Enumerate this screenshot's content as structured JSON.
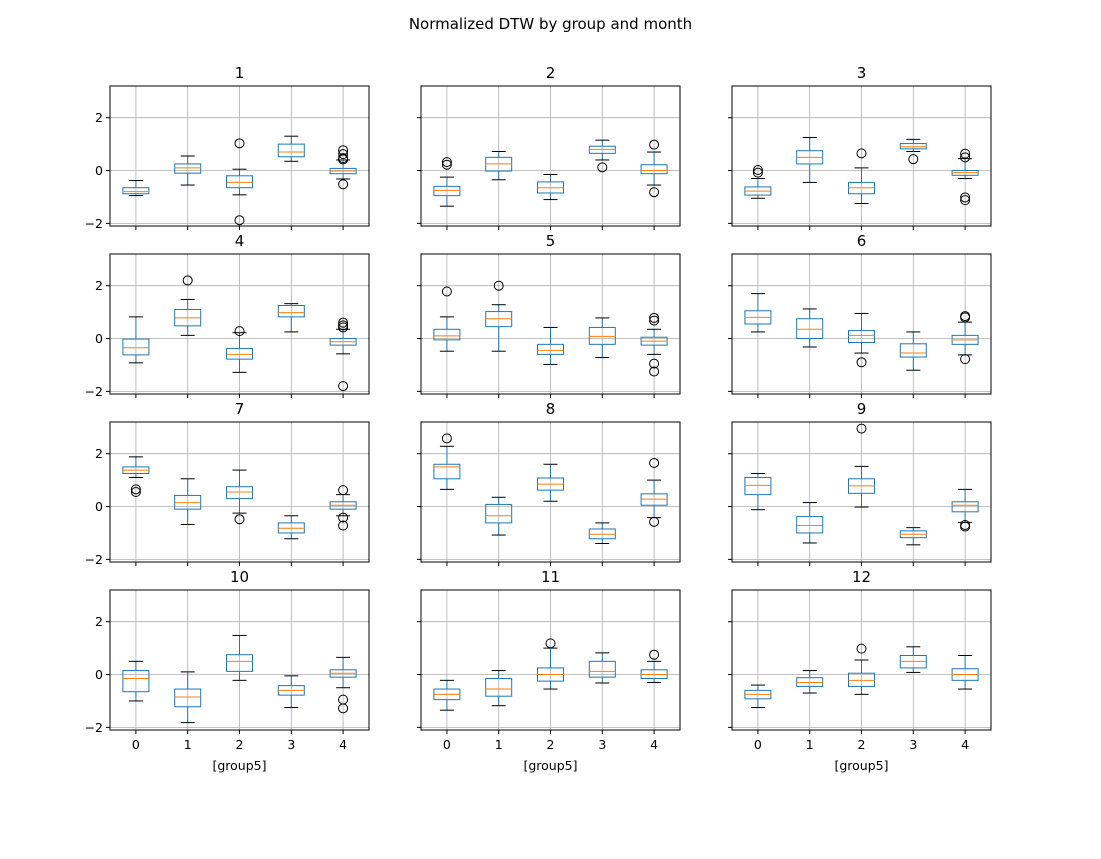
{
  "chart_data": {
    "type": "box",
    "title": "Normalized DTW by group and month",
    "xlabel": "[group5]",
    "categories": [
      "0",
      "1",
      "2",
      "3",
      "4"
    ],
    "ylim": [
      -2.1,
      3.2
    ],
    "yticks": [
      -2,
      0,
      2
    ],
    "grid": true,
    "box_color": "#1f77b4",
    "median_color": "#ff7f0e",
    "panels": [
      {
        "title": "1",
        "boxes": [
          {
            "whislo": -0.95,
            "q1": -0.88,
            "med": -0.8,
            "q3": -0.65,
            "whishi": -0.38,
            "fliers": []
          },
          {
            "whislo": -0.55,
            "q1": -0.1,
            "med": 0.1,
            "q3": 0.25,
            "whishi": 0.55,
            "fliers": []
          },
          {
            "whislo": -0.92,
            "q1": -0.65,
            "med": -0.45,
            "q3": -0.2,
            "whishi": 0.05,
            "fliers": [
              1.03,
              -1.88
            ]
          },
          {
            "whislo": 0.35,
            "q1": 0.52,
            "med": 0.7,
            "q3": 1.0,
            "whishi": 1.3,
            "fliers": []
          },
          {
            "whislo": -0.32,
            "q1": -0.12,
            "med": -0.02,
            "q3": 0.08,
            "whishi": 0.4,
            "fliers": [
              0.77,
              0.62,
              0.47,
              0.42,
              -0.52
            ]
          }
        ]
      },
      {
        "title": "2",
        "boxes": [
          {
            "whislo": -1.35,
            "q1": -0.95,
            "med": -0.75,
            "q3": -0.6,
            "whishi": -0.25,
            "fliers": [
              0.32,
              0.22
            ]
          },
          {
            "whislo": -0.35,
            "q1": -0.02,
            "med": 0.25,
            "q3": 0.5,
            "whishi": 0.72,
            "fliers": []
          },
          {
            "whislo": -1.1,
            "q1": -0.85,
            "med": -0.65,
            "q3": -0.43,
            "whishi": -0.15,
            "fliers": []
          },
          {
            "whislo": 0.4,
            "q1": 0.65,
            "med": 0.8,
            "q3": 0.92,
            "whishi": 1.15,
            "fliers": [
              0.12
            ]
          },
          {
            "whislo": -0.55,
            "q1": -0.12,
            "med": 0.0,
            "q3": 0.22,
            "whishi": 0.7,
            "fliers": [
              0.98,
              -0.82
            ]
          }
        ]
      },
      {
        "title": "3",
        "boxes": [
          {
            "whislo": -1.05,
            "q1": -0.93,
            "med": -0.78,
            "q3": -0.62,
            "whishi": -0.3,
            "fliers": [
              0.02,
              -0.08
            ]
          },
          {
            "whislo": -0.45,
            "q1": 0.25,
            "med": 0.5,
            "q3": 0.75,
            "whishi": 1.25,
            "fliers": []
          },
          {
            "whislo": -1.25,
            "q1": -0.88,
            "med": -0.65,
            "q3": -0.45,
            "whishi": 0.1,
            "fliers": [
              0.65
            ]
          },
          {
            "whislo": 0.72,
            "q1": 0.82,
            "med": 0.9,
            "q3": 1.02,
            "whishi": 1.18,
            "fliers": [
              0.43
            ]
          },
          {
            "whislo": -0.3,
            "q1": -0.18,
            "med": -0.08,
            "q3": 0.0,
            "whishi": 0.45,
            "fliers": [
              0.64,
              0.5,
              -1.02,
              -1.12
            ]
          }
        ]
      },
      {
        "title": "4",
        "boxes": [
          {
            "whislo": -0.92,
            "q1": -0.62,
            "med": -0.35,
            "q3": -0.02,
            "whishi": 0.82,
            "fliers": []
          },
          {
            "whislo": 0.12,
            "q1": 0.48,
            "med": 0.78,
            "q3": 1.1,
            "whishi": 1.48,
            "fliers": [
              2.2
            ]
          },
          {
            "whislo": -1.28,
            "q1": -0.78,
            "med": -0.6,
            "q3": -0.38,
            "whishi": 0.22,
            "fliers": [
              0.28
            ]
          },
          {
            "whislo": 0.25,
            "q1": 0.82,
            "med": 0.98,
            "q3": 1.25,
            "whishi": 1.32,
            "fliers": []
          },
          {
            "whislo": -0.58,
            "q1": -0.25,
            "med": -0.12,
            "q3": 0.0,
            "whishi": 0.35,
            "fliers": [
              0.6,
              0.5,
              0.42,
              -1.8
            ]
          }
        ]
      },
      {
        "title": "5",
        "boxes": [
          {
            "whislo": -0.48,
            "q1": -0.05,
            "med": 0.1,
            "q3": 0.35,
            "whishi": 0.82,
            "fliers": [
              1.78
            ]
          },
          {
            "whislo": -0.48,
            "q1": 0.45,
            "med": 0.75,
            "q3": 1.02,
            "whishi": 1.28,
            "fliers": [
              2.0
            ]
          },
          {
            "whislo": -0.98,
            "q1": -0.6,
            "med": -0.45,
            "q3": -0.22,
            "whishi": 0.42,
            "fliers": []
          },
          {
            "whislo": -0.72,
            "q1": -0.22,
            "med": 0.08,
            "q3": 0.42,
            "whishi": 0.78,
            "fliers": []
          },
          {
            "whislo": -0.6,
            "q1": -0.25,
            "med": -0.1,
            "q3": 0.05,
            "whishi": 0.35,
            "fliers": [
              0.78,
              0.68,
              -0.95,
              -1.25
            ]
          }
        ]
      },
      {
        "title": "6",
        "boxes": [
          {
            "whislo": 0.25,
            "q1": 0.55,
            "med": 0.8,
            "q3": 1.05,
            "whishi": 1.7,
            "fliers": []
          },
          {
            "whislo": -0.32,
            "q1": 0.0,
            "med": 0.35,
            "q3": 0.75,
            "whishi": 1.12,
            "fliers": []
          },
          {
            "whislo": -0.55,
            "q1": -0.15,
            "med": 0.12,
            "q3": 0.3,
            "whishi": 0.95,
            "fliers": [
              -0.9
            ]
          },
          {
            "whislo": -1.2,
            "q1": -0.7,
            "med": -0.55,
            "q3": -0.2,
            "whishi": 0.25,
            "fliers": []
          },
          {
            "whislo": -0.62,
            "q1": -0.22,
            "med": -0.05,
            "q3": 0.12,
            "whishi": 0.62,
            "fliers": [
              0.85,
              0.8,
              -0.78
            ]
          }
        ]
      },
      {
        "title": "7",
        "boxes": [
          {
            "whislo": 1.1,
            "q1": 1.25,
            "med": 1.38,
            "q3": 1.5,
            "whishi": 1.88,
            "fliers": [
              0.65,
              0.55
            ]
          },
          {
            "whislo": -0.68,
            "q1": -0.1,
            "med": 0.15,
            "q3": 0.42,
            "whishi": 1.05,
            "fliers": []
          },
          {
            "whislo": -0.25,
            "q1": 0.3,
            "med": 0.55,
            "q3": 0.75,
            "whishi": 1.38,
            "fliers": [
              -0.48
            ]
          },
          {
            "whislo": -1.22,
            "q1": -1.0,
            "med": -0.82,
            "q3": -0.62,
            "whishi": -0.35,
            "fliers": []
          },
          {
            "whislo": -0.35,
            "q1": -0.1,
            "med": 0.05,
            "q3": 0.18,
            "whishi": 0.45,
            "fliers": [
              0.62,
              -0.42,
              -0.72
            ]
          }
        ]
      },
      {
        "title": "8",
        "boxes": [
          {
            "whislo": 0.65,
            "q1": 1.05,
            "med": 1.5,
            "q3": 1.6,
            "whishi": 2.28,
            "fliers": [
              2.58
            ]
          },
          {
            "whislo": -1.08,
            "q1": -0.62,
            "med": -0.35,
            "q3": 0.08,
            "whishi": 0.35,
            "fliers": []
          },
          {
            "whislo": 0.2,
            "q1": 0.62,
            "med": 0.85,
            "q3": 1.08,
            "whishi": 1.6,
            "fliers": []
          },
          {
            "whislo": -1.4,
            "q1": -1.22,
            "med": -1.05,
            "q3": -0.85,
            "whishi": -0.62,
            "fliers": []
          },
          {
            "whislo": -0.42,
            "q1": 0.05,
            "med": 0.28,
            "q3": 0.48,
            "whishi": 1.0,
            "fliers": [
              1.65,
              -0.58
            ]
          }
        ]
      },
      {
        "title": "9",
        "boxes": [
          {
            "whislo": -0.12,
            "q1": 0.45,
            "med": 0.8,
            "q3": 1.1,
            "whishi": 1.25,
            "fliers": []
          },
          {
            "whislo": -1.38,
            "q1": -1.0,
            "med": -0.72,
            "q3": -0.38,
            "whishi": 0.15,
            "fliers": []
          },
          {
            "whislo": -0.02,
            "q1": 0.5,
            "med": 0.78,
            "q3": 1.05,
            "whishi": 1.52,
            "fliers": [
              2.95
            ]
          },
          {
            "whislo": -1.45,
            "q1": -1.18,
            "med": -1.05,
            "q3": -0.92,
            "whishi": -0.8,
            "fliers": []
          },
          {
            "whislo": -0.6,
            "q1": -0.2,
            "med": 0.05,
            "q3": 0.18,
            "whishi": 0.65,
            "fliers": [
              -0.7,
              -0.76
            ]
          }
        ]
      },
      {
        "title": "10",
        "boxes": [
          {
            "whislo": -1.0,
            "q1": -0.65,
            "med": -0.15,
            "q3": 0.15,
            "whishi": 0.5,
            "fliers": []
          },
          {
            "whislo": -1.82,
            "q1": -1.22,
            "med": -0.85,
            "q3": -0.55,
            "whishi": 0.1,
            "fliers": []
          },
          {
            "whislo": -0.22,
            "q1": 0.12,
            "med": 0.5,
            "q3": 0.75,
            "whishi": 1.48,
            "fliers": []
          },
          {
            "whislo": -1.25,
            "q1": -0.78,
            "med": -0.6,
            "q3": -0.42,
            "whishi": -0.05,
            "fliers": []
          },
          {
            "whislo": -0.5,
            "q1": -0.1,
            "med": 0.05,
            "q3": 0.18,
            "whishi": 0.65,
            "fliers": [
              -0.95,
              -1.28
            ]
          }
        ]
      },
      {
        "title": "11",
        "boxes": [
          {
            "whislo": -1.35,
            "q1": -0.95,
            "med": -0.75,
            "q3": -0.55,
            "whishi": -0.22,
            "fliers": []
          },
          {
            "whislo": -1.18,
            "q1": -0.82,
            "med": -0.55,
            "q3": -0.15,
            "whishi": 0.15,
            "fliers": []
          },
          {
            "whislo": -0.55,
            "q1": -0.25,
            "med": 0.0,
            "q3": 0.25,
            "whishi": 1.0,
            "fliers": [
              1.18
            ]
          },
          {
            "whislo": -0.32,
            "q1": -0.1,
            "med": 0.12,
            "q3": 0.5,
            "whishi": 0.82,
            "fliers": []
          },
          {
            "whislo": -0.3,
            "q1": -0.15,
            "med": 0.0,
            "q3": 0.18,
            "whishi": 0.5,
            "fliers": [
              0.75
            ]
          }
        ]
      },
      {
        "title": "12",
        "boxes": [
          {
            "whislo": -1.25,
            "q1": -0.92,
            "med": -0.75,
            "q3": -0.6,
            "whishi": -0.4,
            "fliers": []
          },
          {
            "whislo": -0.7,
            "q1": -0.45,
            "med": -0.3,
            "q3": -0.12,
            "whishi": 0.15,
            "fliers": []
          },
          {
            "whislo": -0.75,
            "q1": -0.45,
            "med": -0.22,
            "q3": 0.05,
            "whishi": 0.55,
            "fliers": [
              0.98
            ]
          },
          {
            "whislo": 0.08,
            "q1": 0.25,
            "med": 0.5,
            "q3": 0.72,
            "whishi": 1.05,
            "fliers": []
          },
          {
            "whislo": -0.55,
            "q1": -0.22,
            "med": 0.0,
            "q3": 0.22,
            "whishi": 0.72,
            "fliers": []
          }
        ]
      }
    ]
  }
}
